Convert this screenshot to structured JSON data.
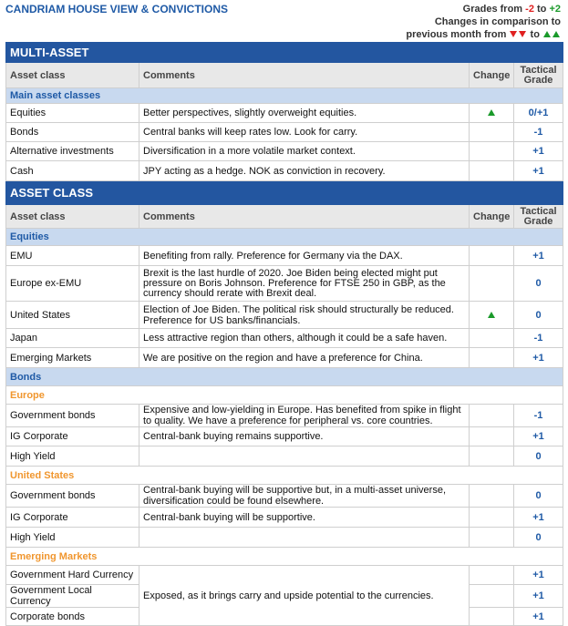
{
  "header": {
    "title": "CANDRIAM HOUSE VIEW & CONVICTIONS",
    "grades": {
      "prefix": "Grades from",
      "low": "-2",
      "mid": "to",
      "high": "+2"
    },
    "changes_line1": "Changes in comparison to",
    "changes_line2": {
      "prefix": "previous month from",
      "mid": "to"
    }
  },
  "sections": [
    {
      "title": "MULTI-ASSET",
      "columns": [
        "Asset class",
        "Comments",
        "Change",
        "Tactical Grade"
      ],
      "groups": [
        {
          "label": "Main asset classes",
          "rows": [
            {
              "asset": "Equities",
              "comment": "Better perspectives, slightly overweight equities.",
              "grade": "0/+1"
            },
            {
              "asset": "Bonds",
              "comment": "Central banks will keep rates low. Look for carry.",
              "grade": "-1"
            },
            {
              "asset": "Alternative investments",
              "comment": "Diversification in a more volatile market context.",
              "grade": "+1"
            },
            {
              "asset": "Cash",
              "comment": "JPY acting as a hedge. NOK as conviction in recovery.",
              "grade": "+1"
            }
          ]
        }
      ]
    },
    {
      "title": "ASSET CLASS",
      "columns": [
        "Asset class",
        "Comments",
        "Change",
        "Tactical Grade"
      ],
      "groups": [
        {
          "label": "Equities",
          "rows": [
            {
              "asset": "EMU",
              "comment": "Benefiting from rally. Preference for Germany via the DAX.",
              "grade": "+1"
            },
            {
              "asset": "Europe ex-EMU",
              "comment": "Brexit is the last hurdle of 2020. Joe Biden being elected might put pressure on Boris Johnson. Preference for FTSE 250 in GBP, as the currency should rerate with Brexit deal.",
              "grade": "0"
            },
            {
              "asset": "United States",
              "comment": "Election of Joe Biden. The political risk should structurally be reduced. Preference for US banks/financials.",
              "grade": "0"
            },
            {
              "asset": "Japan",
              "comment": "Less attractive region than others, although it could be a safe haven.",
              "grade": "-1"
            },
            {
              "asset": "Emerging Markets",
              "comment": "We are positive on the region and have a preference for China.",
              "grade": "+1"
            }
          ]
        },
        {
          "label": "Bonds",
          "subgroups": [
            {
              "label": "Europe",
              "rows": [
                {
                  "asset": "Government bonds",
                  "comment": "Expensive and low-yielding in Europe. Has benefited from spike in flight to quality. We have a preference for peripheral vs. core countries.",
                  "grade": "-1"
                },
                {
                  "asset": "IG Corporate",
                  "comment": "Central-bank buying remains supportive.",
                  "grade": "+1"
                },
                {
                  "asset": "High Yield",
                  "grade": "0"
                }
              ]
            },
            {
              "label": "United States",
              "rows": [
                {
                  "asset": "Government bonds",
                  "comment": "Central-bank buying will be supportive but, in a multi-asset universe, diversification could be found elsewhere.",
                  "grade": "0"
                },
                {
                  "asset": "IG Corporate",
                  "comment": "Central-bank buying will be supportive.",
                  "grade": "+1"
                },
                {
                  "asset": "High Yield",
                  "grade": "0"
                }
              ]
            },
            {
              "label": "Emerging Markets",
              "comment": "Exposed, as it brings carry and upside potential to the currencies.",
              "rows": [
                {
                  "asset": "Government Hard Currency",
                  "grade": "+1"
                },
                {
                  "asset": "Government Local Currency",
                  "grade": "+1"
                },
                {
                  "asset": "Corporate bonds",
                  "grade": "+1"
                }
              ]
            }
          ]
        }
      ]
    }
  ]
}
